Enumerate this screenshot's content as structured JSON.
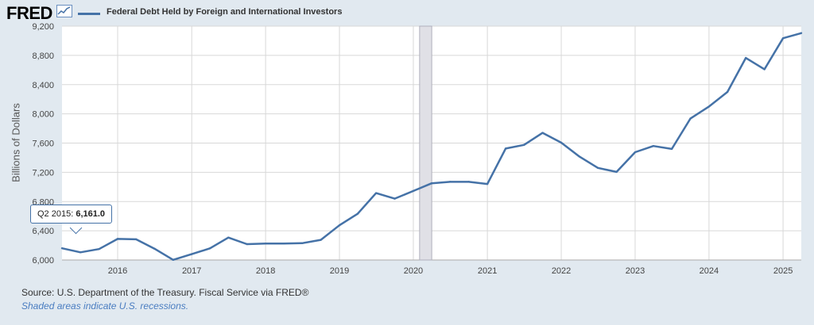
{
  "header": {
    "logo_text": "FRED",
    "logo_icon": "line-chart-icon"
  },
  "chart_data": {
    "type": "line",
    "title": "",
    "xlabel": "",
    "ylabel": "Billions of Dollars",
    "ylim": [
      6000,
      9200
    ],
    "yticks": [
      6000,
      6400,
      6800,
      7200,
      7600,
      8000,
      8400,
      8800,
      9200
    ],
    "ytick_labels": [
      "6,000",
      "6,400",
      "6,800",
      "7,200",
      "7,600",
      "8,000",
      "8,400",
      "8,800",
      "9,200"
    ],
    "xlim": [
      "2015-04-01",
      "2025-04-01"
    ],
    "xticks": [
      "2016-01-01",
      "2017-01-01",
      "2018-01-01",
      "2019-01-01",
      "2020-01-01",
      "2021-01-01",
      "2022-01-01",
      "2023-01-01",
      "2024-01-01",
      "2025-01-01"
    ],
    "xtick_labels": [
      "2016",
      "2017",
      "2018",
      "2019",
      "2020",
      "2021",
      "2022",
      "2023",
      "2024",
      "2025"
    ],
    "grid": true,
    "legend_position": "top-left",
    "recessions": [
      {
        "start": "2020-02-01",
        "end": "2020-04-01"
      }
    ],
    "series": [
      {
        "name": "Federal Debt Held by Foreign and International Investors",
        "color": "#4572a7",
        "x": [
          "2015-04-01",
          "2015-07-01",
          "2015-10-01",
          "2016-01-01",
          "2016-04-01",
          "2016-07-01",
          "2016-10-01",
          "2017-01-01",
          "2017-04-01",
          "2017-07-01",
          "2017-10-01",
          "2018-01-01",
          "2018-04-01",
          "2018-07-01",
          "2018-10-01",
          "2019-01-01",
          "2019-04-01",
          "2019-07-01",
          "2019-10-01",
          "2020-01-01",
          "2020-04-01",
          "2020-07-01",
          "2020-10-01",
          "2021-01-01",
          "2021-04-01",
          "2021-07-01",
          "2021-10-01",
          "2022-01-01",
          "2022-04-01",
          "2022-07-01",
          "2022-10-01",
          "2023-01-01",
          "2023-04-01",
          "2023-07-01",
          "2023-10-01",
          "2024-01-01",
          "2024-04-01",
          "2024-07-01",
          "2024-10-01",
          "2025-01-01",
          "2025-04-01"
        ],
        "values": [
          6161,
          6105,
          6150,
          6289,
          6283,
          6155,
          6002,
          6080,
          6160,
          6307,
          6217,
          6225,
          6225,
          6230,
          6276,
          6475,
          6632,
          6915,
          6840,
          6945,
          7050,
          7070,
          7070,
          7040,
          7525,
          7575,
          7740,
          7605,
          7415,
          7260,
          7205,
          7475,
          7560,
          7520,
          7935,
          8100,
          8300,
          8765,
          8610,
          9035,
          9105
        ]
      }
    ],
    "tooltip": {
      "label": "Q2 2015:",
      "value": "6,161.0"
    }
  },
  "footer": {
    "source": "Source: U.S. Department of the Treasury. Fiscal Service via FRED®",
    "note": "Shaded areas indicate U.S. recessions."
  }
}
